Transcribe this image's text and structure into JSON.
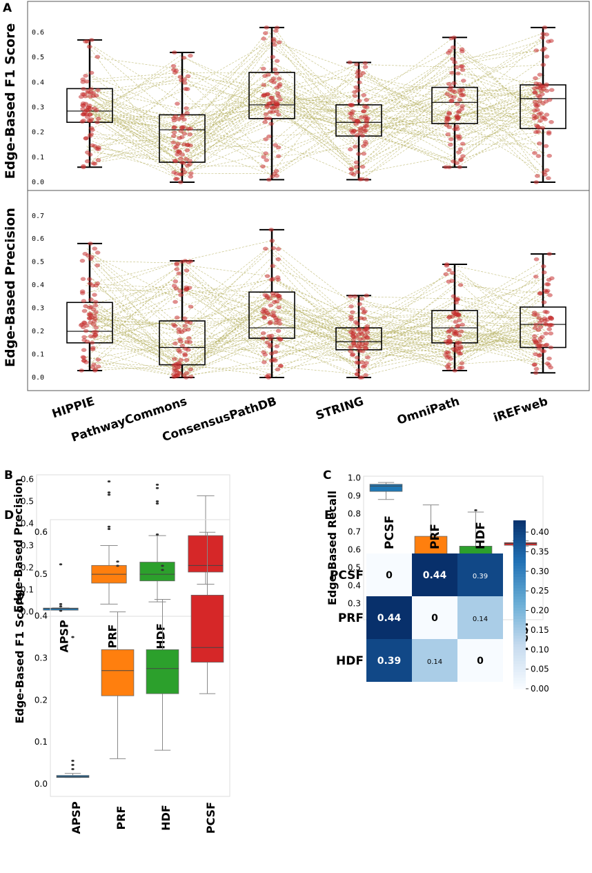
{
  "figure": {
    "colors": {
      "dot": "#cc3333",
      "line": "#b5b060",
      "APSP": "#1f77b4",
      "PRF": "#ff7f0e",
      "HDF": "#2ca02c",
      "PCSF": "#d62728"
    }
  },
  "chart_data": [
    {
      "panel": "A",
      "type": "box",
      "ylabel": "Edge-Based  F1 Score",
      "categories": [
        "HIPPIE",
        "PathwayCommons",
        "ConsensusPathDB",
        "STRING",
        "OmniPath",
        "iREFweb"
      ],
      "ylim": [
        0,
        0.65
      ],
      "yticks": [
        "0.0",
        "0.1",
        "0.2",
        "0.3",
        "0.4",
        "0.5",
        "0.6"
      ],
      "boxes": [
        {
          "min": 0.06,
          "q1": 0.24,
          "median": 0.285,
          "q3": 0.375,
          "max": 0.57
        },
        {
          "min": 0.0,
          "q1": 0.08,
          "median": 0.21,
          "q3": 0.27,
          "max": 0.52
        },
        {
          "min": 0.01,
          "q1": 0.255,
          "median": 0.31,
          "q3": 0.44,
          "max": 0.62
        },
        {
          "min": 0.01,
          "q1": 0.185,
          "median": 0.24,
          "q3": 0.31,
          "max": 0.48
        },
        {
          "min": 0.06,
          "q1": 0.235,
          "median": 0.32,
          "q3": 0.38,
          "max": 0.58
        },
        {
          "min": 0.0,
          "q1": 0.215,
          "median": 0.335,
          "q3": 0.39,
          "max": 0.62
        }
      ]
    },
    {
      "panel": "A",
      "type": "box",
      "ylabel": "Edge-Based Precision",
      "categories": [
        "HIPPIE",
        "PathwayCommons",
        "ConsensusPathDB",
        "STRING",
        "OmniPath",
        "iREFweb"
      ],
      "ylim": [
        0,
        0.78
      ],
      "yticks": [
        "0.0",
        "0.1",
        "0.2",
        "0.3",
        "0.4",
        "0.5",
        "0.6",
        "0.7"
      ],
      "boxes": [
        {
          "min": 0.03,
          "q1": 0.15,
          "median": 0.2,
          "q3": 0.325,
          "max": 0.58
        },
        {
          "min": 0.0,
          "q1": 0.055,
          "median": 0.13,
          "q3": 0.245,
          "max": 0.505
        },
        {
          "min": 0.0,
          "q1": 0.17,
          "median": 0.215,
          "q3": 0.37,
          "max": 0.64
        },
        {
          "min": 0.0,
          "q1": 0.12,
          "median": 0.155,
          "q3": 0.215,
          "max": 0.355
        },
        {
          "min": 0.03,
          "q1": 0.15,
          "median": 0.215,
          "q3": 0.29,
          "max": 0.49
        },
        {
          "min": 0.02,
          "q1": 0.13,
          "median": 0.23,
          "q3": 0.305,
          "max": 0.535
        }
      ]
    },
    {
      "panel": "B",
      "type": "box",
      "ylabel": "Edge-Based Precision",
      "categories": [
        "APSP",
        "PRF",
        "HDF",
        "PCSF"
      ],
      "ylim": [
        -0.02,
        0.62
      ],
      "yticks": [
        "0.0",
        "0.1",
        "0.2",
        "0.3",
        "0.4",
        "0.5",
        "0.6"
      ],
      "boxes": [
        {
          "min": 0.012,
          "q1": 0.013,
          "median": 0.015,
          "q3": 0.017,
          "max": 0.018,
          "outliers": [
            0.005,
            0.025,
            0.035,
            0.215
          ]
        },
        {
          "min": 0.035,
          "q1": 0.13,
          "median": 0.17,
          "q3": 0.21,
          "max": 0.3,
          "outliers": [
            0.375,
            0.385,
            0.53,
            0.54,
            0.59
          ]
        },
        {
          "min": 0.045,
          "q1": 0.14,
          "median": 0.17,
          "q3": 0.225,
          "max": 0.345,
          "outliers": [
            0.35,
            0.49,
            0.5,
            0.56,
            0.575
          ]
        },
        {
          "min": 0.125,
          "q1": 0.18,
          "median": 0.21,
          "q3": 0.345,
          "max": 0.525,
          "outliers": []
        }
      ]
    },
    {
      "panel": "C",
      "type": "box",
      "ylabel": "Edge-Based Recall",
      "categories": [
        "APSP",
        "PRF",
        "HDF",
        "PCSF"
      ],
      "ylim": [
        0.21,
        1.01
      ],
      "yticks": [
        "0.3",
        "0.4",
        "0.5",
        "0.6",
        "0.7",
        "0.8",
        "0.9",
        "1.0"
      ],
      "boxes": [
        {
          "min": 0.88,
          "q1": 0.925,
          "median": 0.955,
          "q3": 0.965,
          "max": 0.975,
          "outliers": []
        },
        {
          "min": 0.26,
          "q1": 0.49,
          "median": 0.545,
          "q3": 0.675,
          "max": 0.85,
          "outliers": []
        },
        {
          "min": 0.29,
          "q1": 0.485,
          "median": 0.54,
          "q3": 0.62,
          "max": 0.81,
          "outliers": [
            0.24,
            0.82
          ]
        },
        {
          "min": 0.62,
          "q1": 0.625,
          "median": 0.635,
          "q3": 0.64,
          "max": 0.65,
          "outliers": [
            0.455,
            0.66,
            0.67
          ]
        }
      ]
    },
    {
      "panel": "D",
      "type": "box",
      "ylabel": "Edge-Based  F1 Score",
      "categories": [
        "APSP",
        "PRF",
        "HDF",
        "PCSF"
      ],
      "ylim": [
        -0.03,
        0.63
      ],
      "yticks": [
        "0.0",
        "0.1",
        "0.2",
        "0.3",
        "0.4",
        "0.5",
        "0.6"
      ],
      "boxes": [
        {
          "min": 0.015,
          "q1": 0.015,
          "median": 0.017,
          "q3": 0.02,
          "max": 0.025,
          "outliers": [
            0.035,
            0.045,
            0.055,
            0.35
          ]
        },
        {
          "min": 0.06,
          "q1": 0.21,
          "median": 0.27,
          "q3": 0.32,
          "max": 0.41,
          "outliers": [
            0.52,
            0.53
          ]
        },
        {
          "min": 0.08,
          "q1": 0.215,
          "median": 0.275,
          "q3": 0.32,
          "max": 0.44,
          "outliers": [
            0.51,
            0.52
          ]
        },
        {
          "min": 0.215,
          "q1": 0.29,
          "median": 0.325,
          "q3": 0.45,
          "max": 0.6,
          "outliers": []
        }
      ]
    },
    {
      "panel": "E",
      "type": "heatmap",
      "columns": [
        "PCSF",
        "PRF",
        "HDF"
      ],
      "rows": [
        "PCSF",
        "PRF",
        "HDF"
      ],
      "values": [
        [
          0,
          0.44,
          0.39
        ],
        [
          0.44,
          0,
          0.14
        ],
        [
          0.39,
          0.14,
          0
        ]
      ],
      "labels": [
        [
          "0",
          "0.44",
          "0.39"
        ],
        [
          "0.44",
          "0",
          "0.14"
        ],
        [
          "0.39",
          "0.14",
          "0"
        ]
      ],
      "vmin": 0,
      "vmax": 0.43,
      "colorbar_ticks": [
        "0.40",
        "0.35",
        "0.30",
        "0.25",
        "0.20",
        "0.15",
        "0.10",
        "0.05",
        "0.00"
      ]
    }
  ]
}
